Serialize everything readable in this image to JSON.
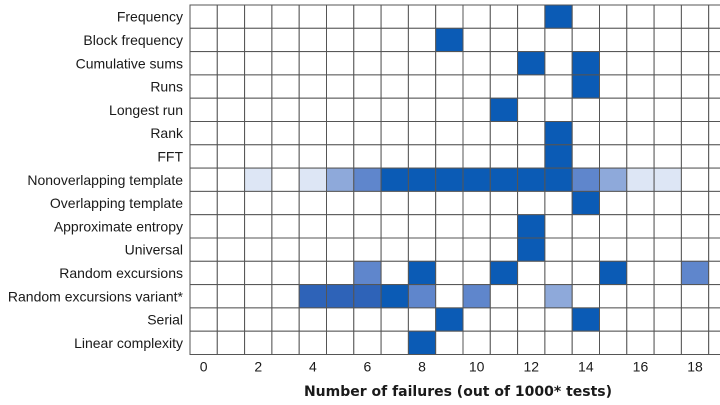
{
  "chart_data": {
    "type": "heatmap",
    "xlabel": "Number of failures (out of 1000* tests)",
    "x_ticks": [
      "0",
      "2",
      "4",
      "6",
      "8",
      "10",
      "12",
      "14",
      "16",
      "18"
    ],
    "x_range": [
      0,
      18
    ],
    "colors": {
      "grid": "#555555",
      "empty": "#ffffff",
      "level_1": "#dde6f5",
      "level_2": "#8ea9da",
      "level_3": "#5f86cc",
      "level_4": "#2e63b8",
      "level_5": "#0b5bb5"
    },
    "rows": [
      {
        "label": "Frequency",
        "cells": [
          [
            13,
            5
          ]
        ]
      },
      {
        "label": "Block frequency",
        "cells": [
          [
            9,
            5
          ]
        ]
      },
      {
        "label": "Cumulative sums",
        "cells": [
          [
            12,
            5
          ],
          [
            14,
            5
          ]
        ]
      },
      {
        "label": "Runs",
        "cells": [
          [
            14,
            5
          ]
        ]
      },
      {
        "label": "Longest run",
        "cells": [
          [
            11,
            5
          ]
        ]
      },
      {
        "label": "Rank",
        "cells": [
          [
            13,
            5
          ]
        ]
      },
      {
        "label": "FFT",
        "cells": [
          [
            13,
            5
          ]
        ]
      },
      {
        "label": "Nonoverlapping template",
        "cells": [
          [
            2,
            1
          ],
          [
            4,
            1
          ],
          [
            5,
            2
          ],
          [
            6,
            3
          ],
          [
            7,
            5
          ],
          [
            8,
            5
          ],
          [
            9,
            5
          ],
          [
            10,
            5
          ],
          [
            11,
            5
          ],
          [
            12,
            5
          ],
          [
            13,
            5
          ],
          [
            14,
            3
          ],
          [
            15,
            2
          ],
          [
            16,
            1
          ],
          [
            17,
            1
          ]
        ]
      },
      {
        "label": "Overlapping template",
        "cells": [
          [
            14,
            5
          ]
        ]
      },
      {
        "label": "Approximate entropy",
        "cells": [
          [
            12,
            5
          ]
        ]
      },
      {
        "label": "Universal",
        "cells": [
          [
            12,
            5
          ]
        ]
      },
      {
        "label": "Random excursions",
        "cells": [
          [
            6,
            3
          ],
          [
            8,
            5
          ],
          [
            11,
            5
          ],
          [
            15,
            5
          ],
          [
            18,
            3
          ]
        ]
      },
      {
        "label": "Random excursions variant*",
        "cells": [
          [
            4,
            4
          ],
          [
            5,
            4
          ],
          [
            6,
            4
          ],
          [
            7,
            5
          ],
          [
            8,
            3
          ],
          [
            10,
            3
          ],
          [
            13,
            2
          ]
        ]
      },
      {
        "label": "Serial",
        "cells": [
          [
            9,
            5
          ],
          [
            14,
            5
          ]
        ]
      },
      {
        "label": "Linear complexity",
        "cells": [
          [
            8,
            5
          ]
        ]
      }
    ]
  }
}
